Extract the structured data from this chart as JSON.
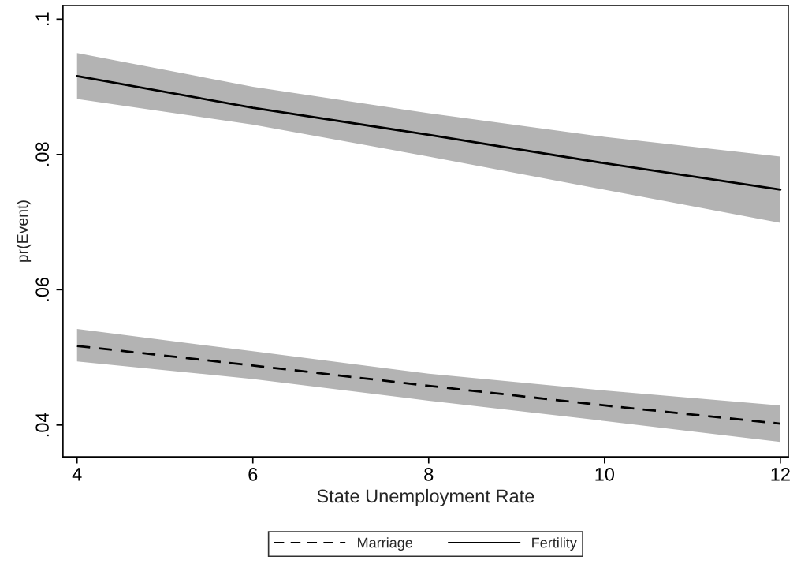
{
  "chart_data": {
    "type": "line",
    "xlabel": "State Unemployment Rate",
    "ylabel": "pr(Event)",
    "x": [
      4,
      6,
      8,
      10,
      12
    ],
    "series": [
      {
        "name": "Marriage",
        "color": "#000000",
        "line_style": "dashed",
        "values": [
          0.0517,
          0.0488,
          0.0458,
          0.0429,
          0.0402
        ],
        "lower": [
          0.0494,
          0.0468,
          0.0436,
          0.0406,
          0.0375
        ],
        "upper": [
          0.0542,
          0.0509,
          0.0476,
          0.0451,
          0.0429
        ]
      },
      {
        "name": "Fertility",
        "color": "#000000",
        "line_style": "solid",
        "values": [
          0.0916,
          0.0869,
          0.0829,
          0.0787,
          0.0748
        ],
        "lower": [
          0.0882,
          0.0844,
          0.0797,
          0.0748,
          0.0699
        ],
        "upper": [
          0.095,
          0.09,
          0.0861,
          0.0826,
          0.0797
        ]
      }
    ],
    "xlim": [
      3.84,
      12.09
    ],
    "ylim": [
      0.0353,
      0.102
    ],
    "xticks": [
      4,
      6,
      8,
      10,
      12
    ],
    "yticks": [
      {
        "value": 0.04,
        "label": ".04"
      },
      {
        "value": 0.06,
        "label": ".06"
      },
      {
        "value": 0.08,
        "label": ".08"
      },
      {
        "value": 0.1,
        "label": ".1"
      }
    ],
    "grid": false,
    "legend": "bottom"
  }
}
